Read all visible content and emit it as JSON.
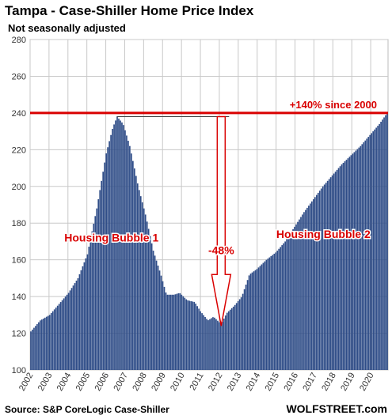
{
  "chart_data": {
    "type": "bar",
    "title": "Tampa - Case-Shiller Home Price Index",
    "subtitle": "Not seasonally adjusted",
    "source": "Source: S&P CoreLogic Case-Shiller",
    "brand": "WOLFSTREET.com",
    "bar_color": "#2e4c87",
    "grid": true,
    "ylim": [
      100,
      280
    ],
    "yticks": [
      100,
      120,
      140,
      160,
      180,
      200,
      220,
      240,
      260,
      280
    ],
    "xlim": [
      2002.0,
      2020.917
    ],
    "xticks": [
      "2002",
      "2003",
      "2004",
      "2005",
      "2006",
      "2007",
      "2008",
      "2009",
      "2010",
      "2011",
      "2012",
      "2013",
      "2014",
      "2015",
      "2016",
      "2017",
      "2018",
      "2019",
      "2020"
    ],
    "anchors": [
      [
        2002.0,
        121
      ],
      [
        2002.5,
        127
      ],
      [
        2003.0,
        130
      ],
      [
        2003.5,
        136
      ],
      [
        2004.0,
        142
      ],
      [
        2004.5,
        150
      ],
      [
        2005.0,
        163
      ],
      [
        2005.5,
        188
      ],
      [
        2006.0,
        218
      ],
      [
        2006.35,
        232
      ],
      [
        2006.58,
        238
      ],
      [
        2006.9,
        234
      ],
      [
        2007.25,
        222
      ],
      [
        2007.7,
        200
      ],
      [
        2008.1,
        184
      ],
      [
        2008.5,
        165
      ],
      [
        2008.9,
        152
      ],
      [
        2009.2,
        141
      ],
      [
        2009.6,
        141
      ],
      [
        2009.9,
        142
      ],
      [
        2010.3,
        138
      ],
      [
        2010.7,
        137
      ],
      [
        2011.0,
        132
      ],
      [
        2011.4,
        127
      ],
      [
        2011.7,
        129
      ],
      [
        2012.1,
        125
      ],
      [
        2012.4,
        131
      ],
      [
        2012.8,
        135
      ],
      [
        2013.2,
        140
      ],
      [
        2013.6,
        152
      ],
      [
        2014.0,
        155
      ],
      [
        2014.5,
        160
      ],
      [
        2015.0,
        164
      ],
      [
        2015.5,
        170
      ],
      [
        2016.0,
        178
      ],
      [
        2016.5,
        186
      ],
      [
        2017.0,
        193
      ],
      [
        2017.5,
        200
      ],
      [
        2018.0,
        206
      ],
      [
        2018.5,
        212
      ],
      [
        2019.0,
        217
      ],
      [
        2019.5,
        222
      ],
      [
        2020.0,
        228
      ],
      [
        2020.5,
        234
      ],
      [
        2020.917,
        240
      ]
    ],
    "reference_line": {
      "value": 240,
      "color": "#d90000",
      "label": "+140% since 2000"
    },
    "annotations": [
      {
        "text": "Housing Bubble 1",
        "x": 2006.3,
        "y": 170,
        "color": "#d90000"
      },
      {
        "text": "Housing Bubble 2",
        "x": 2017.5,
        "y": 172,
        "color": "#d90000"
      },
      {
        "text": "-48%",
        "x": 2012.1,
        "y": 163,
        "color": "#d90000"
      }
    ],
    "drop_arrow": {
      "x": 2012.1,
      "from_y": 238,
      "to_y": 124,
      "peak_x": 2006.58,
      "color": "#d90000"
    }
  }
}
